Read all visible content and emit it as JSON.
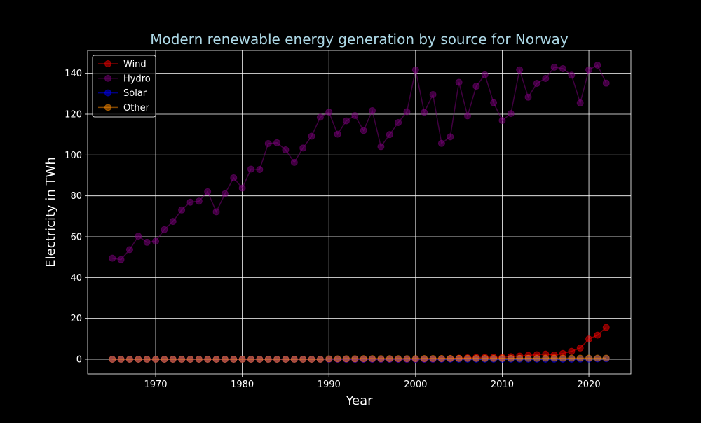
{
  "chart_data": {
    "type": "line",
    "title": "Modern renewable energy generation by source for Norway",
    "xlabel": "Year",
    "ylabel": "Electricity in TWh",
    "xlim": [
      1962.15,
      2024.85
    ],
    "ylim": [
      -7.2,
      151.2
    ],
    "x_ticks": [
      1970,
      1980,
      1990,
      2000,
      2010,
      2020
    ],
    "y_ticks": [
      0,
      20,
      40,
      60,
      80,
      100,
      120,
      140
    ],
    "grid": true,
    "legend_position": "top-left",
    "x": [
      1965,
      1966,
      1967,
      1968,
      1969,
      1970,
      1971,
      1972,
      1973,
      1974,
      1975,
      1976,
      1977,
      1978,
      1979,
      1980,
      1981,
      1982,
      1983,
      1984,
      1985,
      1986,
      1987,
      1988,
      1989,
      1990,
      1991,
      1992,
      1993,
      1994,
      1995,
      1996,
      1997,
      1998,
      1999,
      2000,
      2001,
      2002,
      2003,
      2004,
      2005,
      2006,
      2007,
      2008,
      2009,
      2010,
      2011,
      2012,
      2013,
      2014,
      2015,
      2016,
      2017,
      2018,
      2019,
      2020,
      2021,
      2022
    ],
    "series": [
      {
        "name": "Wind",
        "color": "#ff0000",
        "values": [
          0,
          0,
          0,
          0,
          0,
          0,
          0,
          0,
          0,
          0,
          0,
          0,
          0,
          0,
          0,
          0,
          0,
          0,
          0,
          0,
          0,
          0,
          0,
          0,
          0,
          0,
          0,
          0,
          0,
          0,
          0,
          0,
          0,
          0,
          0,
          0,
          0.03,
          0.07,
          0.22,
          0.26,
          0.51,
          0.67,
          0.89,
          0.92,
          0.98,
          0.88,
          1.29,
          1.56,
          1.89,
          2.22,
          2.51,
          2.12,
          2.85,
          3.88,
          5.5,
          9.91,
          11.8,
          15.6
        ]
      },
      {
        "name": "Hydro",
        "color": "#800080",
        "values": [
          49.5,
          48.8,
          53.7,
          60.3,
          57.3,
          57.8,
          63.5,
          67.5,
          73.1,
          76.9,
          77.4,
          82.0,
          72.2,
          81.0,
          88.8,
          83.8,
          93.1,
          92.9,
          105.6,
          106.0,
          102.5,
          96.4,
          103.4,
          109.2,
          118.5,
          121.0,
          110.2,
          116.7,
          119.3,
          112.0,
          121.7,
          104.1,
          110.0,
          115.9,
          121.2,
          141.7,
          120.9,
          129.6,
          105.7,
          108.9,
          135.6,
          119.2,
          133.7,
          139.3,
          125.6,
          116.9,
          120.3,
          141.7,
          128.3,
          135.1,
          137.5,
          143.0,
          142.3,
          139.1,
          125.5,
          141.7,
          144.0,
          135.2
        ]
      },
      {
        "name": "Solar",
        "color": "#0000ff",
        "values": [
          0,
          0,
          0,
          0,
          0,
          0,
          0,
          0,
          0,
          0,
          0,
          0,
          0,
          0,
          0,
          0,
          0,
          0,
          0,
          0,
          0,
          0,
          0,
          0,
          0,
          0,
          0,
          0,
          0,
          0,
          0,
          0,
          0,
          0,
          0,
          0,
          0,
          0,
          0,
          0,
          0,
          0,
          0,
          0,
          0,
          0,
          0,
          0,
          0,
          0,
          0,
          0,
          0.01,
          0.02,
          0.04,
          0.1,
          0.16,
          0.25
        ]
      },
      {
        "name": "Other",
        "color": "#ff8c00",
        "values": [
          0,
          0,
          0,
          0,
          0,
          0,
          0,
          0,
          0,
          0,
          0,
          0,
          0,
          0,
          0,
          0,
          0,
          0,
          0,
          0,
          0,
          0,
          0,
          0,
          0,
          0.2,
          0.2,
          0.25,
          0.25,
          0.3,
          0.3,
          0.3,
          0.3,
          0.3,
          0.3,
          0.3,
          0.35,
          0.35,
          0.35,
          0.4,
          0.4,
          0.4,
          0.4,
          0.4,
          0.4,
          0.45,
          0.45,
          0.45,
          0.45,
          0.45,
          0.5,
          0.5,
          0.5,
          0.5,
          0.5,
          0.5,
          0.5,
          0.5
        ]
      }
    ]
  }
}
